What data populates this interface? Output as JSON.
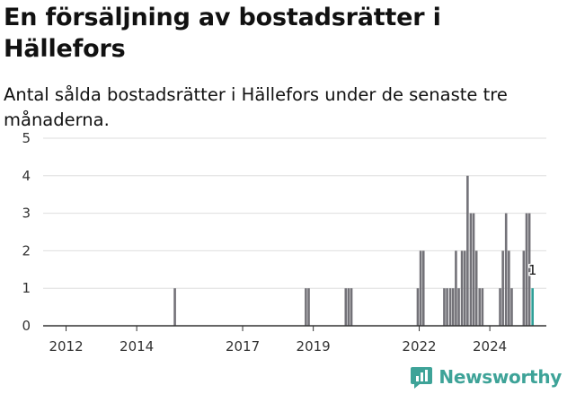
{
  "chart_data": {
    "type": "bar",
    "title": "En försäljning av bostadsrätter i Hällefors",
    "subtitle": "Antal sålda bostadsrätter i Hällefors under de senaste tre månaderna.",
    "xlabel": "",
    "ylabel": "",
    "ylim": [
      0,
      5
    ],
    "yticks": [
      "0",
      "1",
      "2",
      "3",
      "4",
      "5"
    ],
    "xlim": [
      2011.35,
      2025.6
    ],
    "xticks": [
      {
        "label": "2012",
        "value": 2012.0
      },
      {
        "label": "2014",
        "value": 2014.0
      },
      {
        "label": "2017",
        "value": 2017.0
      },
      {
        "label": "2019",
        "value": 2019.0
      },
      {
        "label": "2022",
        "value": 2022.0
      },
      {
        "label": "2024",
        "value": 2024.0
      }
    ],
    "grid": true,
    "bar_color": "#737278",
    "highlight_color": "#2da098",
    "highlight_label": "1",
    "series": [
      {
        "x": [
          2015.08,
          2018.79,
          2018.87,
          2019.92,
          2020.0,
          2020.08,
          2021.96,
          2022.04,
          2022.12,
          2022.71,
          2022.79,
          2022.88,
          2022.96,
          2023.04,
          2023.12,
          2023.21,
          2023.29,
          2023.37,
          2023.46,
          2023.54,
          2023.62,
          2023.71,
          2023.79,
          2024.29,
          2024.37,
          2024.46,
          2024.54,
          2024.62,
          2024.96,
          2025.04,
          2025.12,
          2025.21
        ],
        "values": [
          1,
          1,
          1,
          1,
          1,
          1,
          1,
          2,
          2,
          1,
          1,
          1,
          1,
          2,
          1,
          2,
          2,
          4,
          3,
          3,
          2,
          1,
          1,
          1,
          2,
          3,
          2,
          1,
          2,
          3,
          3,
          1
        ]
      }
    ],
    "highlight_x": 2025.21
  },
  "branding": {
    "name": "Newsworthy",
    "logo_icon": "newsworthy-chart-icon",
    "color": "#3ea398"
  }
}
